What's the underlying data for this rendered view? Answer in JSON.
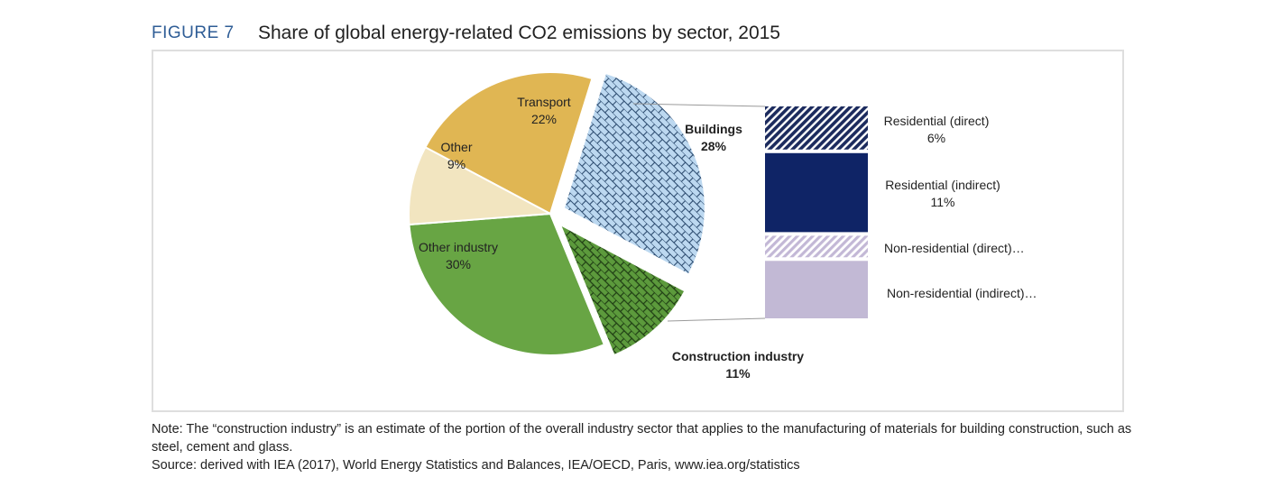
{
  "figure_label": "FIGURE 7",
  "figure_title": "Share of global energy-related CO2 emissions by sector, 2015",
  "note": "Note: The “construction industry” is an estimate of the portion of the overall industry sector that applies to the manufacturing of materials for building construction, such as steel, cement and glass.",
  "source": "Source: derived with IEA (2017), World Energy Statistics and Balances, IEA/OECD, Paris, www.iea.org/statistics",
  "chart_data": [
    {
      "type": "pie",
      "slices": [
        {
          "label": "Transport",
          "value_label": "22%",
          "value": 22,
          "color": "#e0b653",
          "pattern": "solid"
        },
        {
          "label": "Buildings",
          "value_label": "28%",
          "value": 28,
          "color": "#bcd8f0",
          "pattern": "brick",
          "exploded": true
        },
        {
          "label": "Construction industry",
          "value_label": "11%",
          "value": 11,
          "color": "#5c9a3c",
          "pattern": "brick",
          "exploded": true
        },
        {
          "label": "Other industry",
          "value_label": "30%",
          "value": 30,
          "color": "#68a544",
          "pattern": "solid"
        },
        {
          "label": "Other",
          "value_label": "9%",
          "value": 9,
          "color": "#f2e5c0",
          "pattern": "solid"
        }
      ]
    },
    {
      "type": "bar",
      "stacked": true,
      "breakdown_of": "Buildings",
      "segments": [
        {
          "label": "Residential  (direct)",
          "value_label": "6%",
          "value": 6,
          "color": "#1c2b5e",
          "pattern": "diagonal"
        },
        {
          "label": "Residential  (indirect)",
          "value_label": "11%",
          "value": 11,
          "color": "#0f2466",
          "pattern": "solid"
        },
        {
          "label": "Non-residential  (direct)…",
          "value_label": "",
          "value": 3,
          "color": "#c7bcd8",
          "pattern": "diagonal"
        },
        {
          "label": "Non-residential  (indirect)…",
          "value_label": "",
          "value": 8,
          "color": "#c2b9d5",
          "pattern": "solid"
        }
      ]
    }
  ]
}
